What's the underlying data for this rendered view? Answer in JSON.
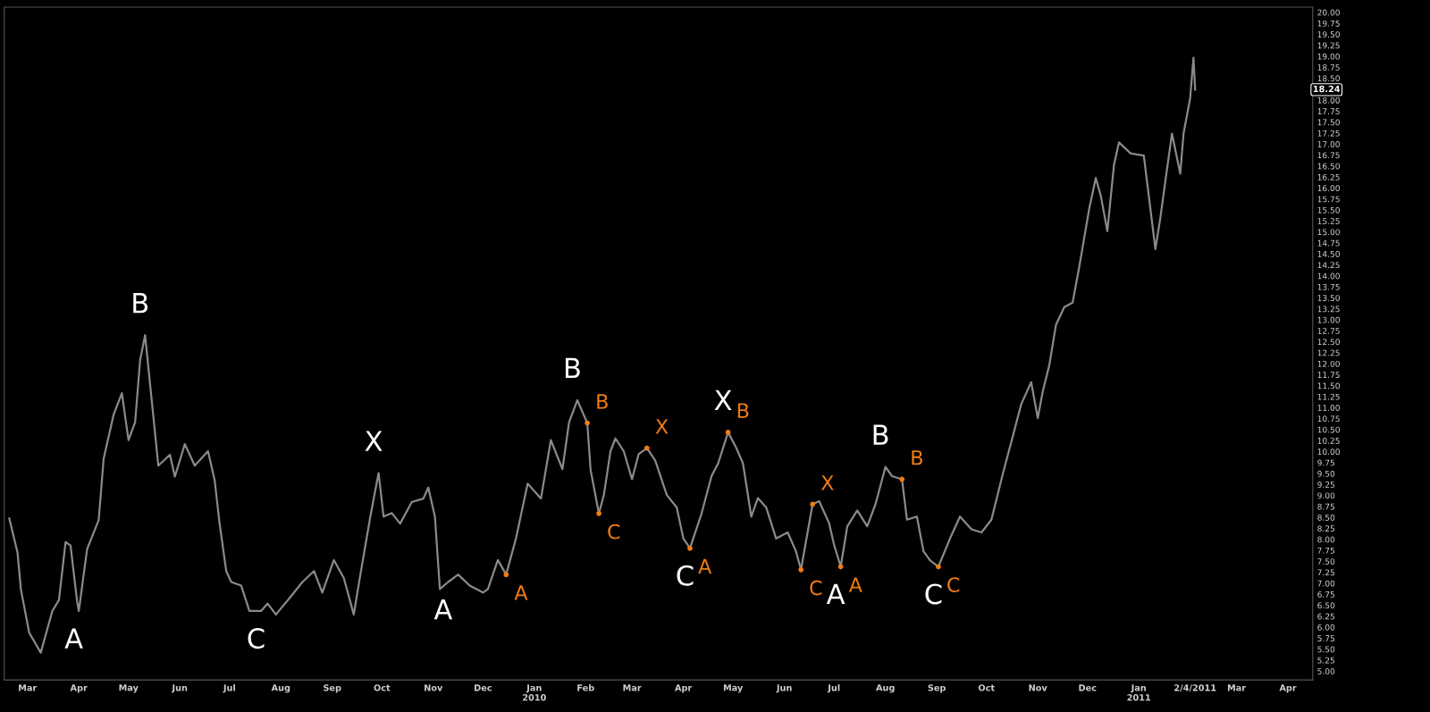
{
  "chart_data": {
    "type": "line",
    "x": [
      "2009-02-18",
      "2009-02-23",
      "2009-02-25",
      "2009-03-02",
      "2009-03-09",
      "2009-03-16",
      "2009-03-20",
      "2009-03-24",
      "2009-03-27",
      "2009-03-31",
      "2009-04-01",
      "2009-04-06",
      "2009-04-13",
      "2009-04-16",
      "2009-04-22",
      "2009-04-27",
      "2009-05-01",
      "2009-05-05",
      "2009-05-08",
      "2009-05-11",
      "2009-05-15",
      "2009-05-19",
      "2009-05-26",
      "2009-05-29",
      "2009-06-04",
      "2009-06-10",
      "2009-06-18",
      "2009-06-22",
      "2009-06-25",
      "2009-06-29",
      "2009-07-02",
      "2009-07-08",
      "2009-07-13",
      "2009-07-20",
      "2009-07-24",
      "2009-07-29",
      "2009-08-07",
      "2009-08-14",
      "2009-08-21",
      "2009-08-26",
      "2009-09-02",
      "2009-09-08",
      "2009-09-14",
      "2009-09-18",
      "2009-09-24",
      "2009-09-29",
      "2009-10-02",
      "2009-10-07",
      "2009-10-12",
      "2009-10-19",
      "2009-10-26",
      "2009-10-29",
      "2009-11-02",
      "2009-11-05",
      "2009-11-10",
      "2009-11-16",
      "2009-11-23",
      "2009-12-01",
      "2009-12-04",
      "2009-12-10",
      "2009-12-15",
      "2009-12-21",
      "2009-12-28",
      "2010-01-05",
      "2010-01-11",
      "2010-01-18",
      "2010-01-22",
      "2010-01-27",
      "2010-01-28",
      "2010-02-02",
      "2010-02-04",
      "2010-02-09",
      "2010-02-12",
      "2010-02-16",
      "2010-02-19",
      "2010-02-24",
      "2010-03-01",
      "2010-03-05",
      "2010-03-10",
      "2010-03-15",
      "2010-03-22",
      "2010-03-28",
      "2010-04-01",
      "2010-04-05",
      "2010-04-12",
      "2010-04-18",
      "2010-04-22",
      "2010-04-28",
      "2010-05-03",
      "2010-05-07",
      "2010-05-12",
      "2010-05-16",
      "2010-05-21",
      "2010-05-27",
      "2010-06-03",
      "2010-06-08",
      "2010-06-11",
      "2010-06-15",
      "2010-06-18",
      "2010-06-22",
      "2010-06-28",
      "2010-07-01",
      "2010-07-05",
      "2010-07-09",
      "2010-07-15",
      "2010-07-21",
      "2010-07-26",
      "2010-08-01",
      "2010-08-05",
      "2010-08-11",
      "2010-08-14",
      "2010-08-20",
      "2010-08-24",
      "2010-08-28",
      "2010-09-02",
      "2010-09-09",
      "2010-09-15",
      "2010-09-22",
      "2010-09-28",
      "2010-10-04",
      "2010-10-11",
      "2010-10-16",
      "2010-10-22",
      "2010-10-28",
      "2010-11-01",
      "2010-11-04",
      "2010-11-08",
      "2010-11-12",
      "2010-11-17",
      "2010-11-22",
      "2010-11-26",
      "2010-12-02",
      "2010-12-06",
      "2010-12-09",
      "2010-12-13",
      "2010-12-17",
      "2010-12-20",
      "2010-12-27",
      "2011-01-04",
      "2011-01-07",
      "2011-01-11",
      "2011-01-14",
      "2011-01-18",
      "2011-01-21",
      "2011-01-26",
      "2011-01-28",
      "2011-02-01",
      "2011-02-03",
      "2011-02-04"
    ],
    "series": [
      {
        "color": "#8a8a8a",
        "values": [
          8.48,
          7.7,
          6.87,
          5.88,
          5.42,
          6.37,
          6.62,
          7.94,
          7.86,
          6.58,
          6.37,
          7.78,
          8.44,
          9.84,
          10.84,
          11.33,
          10.26,
          10.67,
          12.08,
          12.65,
          11.17,
          9.68,
          9.93,
          9.43,
          10.17,
          9.68,
          10.01,
          9.35,
          8.36,
          7.28,
          7.03,
          6.95,
          6.37,
          6.37,
          6.54,
          6.29,
          6.7,
          7.03,
          7.28,
          6.79,
          7.53,
          7.12,
          6.29,
          7.2,
          8.52,
          9.51,
          8.52,
          8.6,
          8.36,
          8.85,
          8.93,
          9.18,
          8.52,
          6.87,
          7.03,
          7.2,
          6.95,
          6.79,
          6.87,
          7.53,
          7.2,
          8.03,
          9.27,
          8.93,
          10.26,
          9.6,
          10.67,
          11.17,
          11.08,
          10.65,
          9.58,
          8.59,
          9.01,
          10.01,
          10.3,
          10.01,
          9.37,
          9.94,
          10.08,
          9.8,
          9.01,
          8.73,
          8.02,
          7.8,
          8.59,
          9.44,
          9.73,
          10.44,
          10.08,
          9.73,
          8.52,
          8.94,
          8.73,
          8.02,
          8.16,
          7.73,
          7.31,
          8.16,
          8.8,
          8.87,
          8.37,
          7.88,
          7.38,
          8.3,
          8.66,
          8.3,
          8.8,
          9.65,
          9.44,
          9.37,
          8.45,
          8.52,
          7.73,
          7.52,
          7.38,
          8.02,
          8.52,
          8.23,
          8.16,
          8.45,
          9.51,
          10.22,
          11.08,
          11.58,
          10.76,
          11.37,
          11.98,
          12.89,
          13.29,
          13.39,
          14.2,
          15.52,
          16.23,
          15.83,
          15.02,
          16.53,
          17.04,
          16.79,
          16.74,
          15.83,
          14.61,
          15.32,
          16.43,
          17.24,
          16.33,
          17.24,
          18.05,
          18.97,
          18.24
        ]
      },
      {
        "type": "scatter",
        "color": "#f07c14",
        "marker": "circle",
        "x": [
          "2009-12-15",
          "2010-02-02",
          "2010-02-09",
          "2010-03-10",
          "2010-04-05",
          "2010-04-28",
          "2010-06-11",
          "2010-06-18",
          "2010-07-05",
          "2010-08-11",
          "2010-09-02"
        ],
        "values": [
          7.2,
          10.65,
          8.59,
          10.08,
          7.8,
          10.44,
          7.31,
          8.8,
          7.38,
          9.37,
          7.38
        ],
        "value_labels": [
          "A",
          "B",
          "C",
          "X",
          "A",
          "B",
          "C",
          "X",
          "A",
          "B",
          "C"
        ]
      }
    ],
    "xlim": [
      "2009-02-15",
      "2011-04-16"
    ],
    "xticks": [
      {
        "value": "2009-03-01",
        "label": "Mar"
      },
      {
        "value": "2009-04-01",
        "label": "Apr"
      },
      {
        "value": "2009-05-01",
        "label": "May"
      },
      {
        "value": "2009-06-01",
        "label": "Jun"
      },
      {
        "value": "2009-07-01",
        "label": "Jul"
      },
      {
        "value": "2009-08-01",
        "label": "Aug"
      },
      {
        "value": "2009-09-01",
        "label": "Sep"
      },
      {
        "value": "2009-10-01",
        "label": "Oct"
      },
      {
        "value": "2009-11-01",
        "label": "Nov"
      },
      {
        "value": "2009-12-01",
        "label": "Dec"
      },
      {
        "value": "2010-01-01",
        "label": "Jan\n2010"
      },
      {
        "value": "2010-02-01",
        "label": "Feb"
      },
      {
        "value": "2010-03-01",
        "label": "Mar"
      },
      {
        "value": "2010-04-01",
        "label": "Apr"
      },
      {
        "value": "2010-05-01",
        "label": "May"
      },
      {
        "value": "2010-06-01",
        "label": "Jun"
      },
      {
        "value": "2010-07-01",
        "label": "Jul"
      },
      {
        "value": "2010-08-01",
        "label": "Aug"
      },
      {
        "value": "2010-09-01",
        "label": "Sep"
      },
      {
        "value": "2010-10-01",
        "label": "Oct"
      },
      {
        "value": "2010-11-01",
        "label": "Nov"
      },
      {
        "value": "2010-12-01",
        "label": "Dec"
      },
      {
        "value": "2011-01-01",
        "label": "Jan\n2011"
      },
      {
        "value": "2011-02-04",
        "label": "2/4/2011"
      },
      {
        "value": "2011-03-01",
        "label": "Mar"
      },
      {
        "value": "2011-04-01",
        "label": "Apr"
      }
    ],
    "ylim": [
      4.8,
      20.12
    ],
    "yticks": [
      {
        "value": 5,
        "label": "5.00"
      },
      {
        "value": 5.25,
        "label": "5.25"
      },
      {
        "value": 5.5,
        "label": "5.50"
      },
      {
        "value": 5.75,
        "label": "5.75"
      },
      {
        "value": 6,
        "label": "6.00"
      },
      {
        "value": 6.25,
        "label": "6.25"
      },
      {
        "value": 6.5,
        "label": "6.50"
      },
      {
        "value": 6.75,
        "label": "6.75"
      },
      {
        "value": 7,
        "label": "7.00"
      },
      {
        "value": 7.25,
        "label": "7.25"
      },
      {
        "value": 7.5,
        "label": "7.50"
      },
      {
        "value": 7.75,
        "label": "7.75"
      },
      {
        "value": 8,
        "label": "8.00"
      },
      {
        "value": 8.25,
        "label": "8.25"
      },
      {
        "value": 8.5,
        "label": "8.50"
      },
      {
        "value": 8.75,
        "label": "8.75"
      },
      {
        "value": 9,
        "label": "9.00"
      },
      {
        "value": 9.25,
        "label": "9.25"
      },
      {
        "value": 9.5,
        "label": "9.50"
      },
      {
        "value": 9.75,
        "label": "9.75"
      },
      {
        "value": 10,
        "label": "10.00"
      },
      {
        "value": 10.25,
        "label": "10.25"
      },
      {
        "value": 10.5,
        "label": "10.50"
      },
      {
        "value": 10.75,
        "label": "10.75"
      },
      {
        "value": 11,
        "label": "11.00"
      },
      {
        "value": 11.25,
        "label": "11.25"
      },
      {
        "value": 11.5,
        "label": "11.50"
      },
      {
        "value": 11.75,
        "label": "11.75"
      },
      {
        "value": 12,
        "label": "12.00"
      },
      {
        "value": 12.25,
        "label": "12.25"
      },
      {
        "value": 12.5,
        "label": "12.50"
      },
      {
        "value": 12.75,
        "label": "12.75"
      },
      {
        "value": 13,
        "label": "13.00"
      },
      {
        "value": 13.25,
        "label": "13.25"
      },
      {
        "value": 13.5,
        "label": "13.50"
      },
      {
        "value": 13.75,
        "label": "13.75"
      },
      {
        "value": 14,
        "label": "14.00"
      },
      {
        "value": 14.25,
        "label": "14.25"
      },
      {
        "value": 14.5,
        "label": "14.50"
      },
      {
        "value": 14.75,
        "label": "14.75"
      },
      {
        "value": 15,
        "label": "15.00"
      },
      {
        "value": 15.25,
        "label": "15.25"
      },
      {
        "value": 15.5,
        "label": "15.50"
      },
      {
        "value": 15.75,
        "label": "15.75"
      },
      {
        "value": 16,
        "label": "16.00"
      },
      {
        "value": 16.25,
        "label": "16.25"
      },
      {
        "value": 16.5,
        "label": "16.50"
      },
      {
        "value": 16.75,
        "label": "16.75"
      },
      {
        "value": 17,
        "label": "17.00"
      },
      {
        "value": 17.25,
        "label": "17.25"
      },
      {
        "value": 17.5,
        "label": "17.50"
      },
      {
        "value": 17.75,
        "label": "17.75"
      },
      {
        "value": 18,
        "label": "18.00"
      },
      {
        "value": 18.5,
        "label": "18.50"
      },
      {
        "value": 18.75,
        "label": "18.75"
      },
      {
        "value": 19,
        "label": "19.00"
      },
      {
        "value": 19.25,
        "label": "19.25"
      },
      {
        "value": 19.5,
        "label": "19.50"
      },
      {
        "value": 19.75,
        "label": "19.75"
      },
      {
        "value": 20,
        "label": "20.00"
      }
    ],
    "grid": false,
    "legend": false,
    "marker": "none",
    "line_style": "solid",
    "annotations": [
      "18.24",
      {
        "text": "A",
        "x": "2009-04-01",
        "y": 6.37
      },
      {
        "text": "B",
        "x": "2009-05-11",
        "y": 12.65
      },
      {
        "text": "C",
        "x": "2009-07-20",
        "y": 6.37
      },
      {
        "text": "X",
        "x": "2009-09-29",
        "y": 9.51
      },
      {
        "text": "A",
        "x": "2009-11-10",
        "y": 7.03
      },
      {
        "text": "B",
        "x": "2010-01-27",
        "y": 11.17
      },
      {
        "text": "C",
        "x": "2010-04-05",
        "y": 7.8
      },
      {
        "text": "X",
        "x": "2010-04-28",
        "y": 10.44
      },
      {
        "text": "A",
        "x": "2010-07-05",
        "y": 7.38
      },
      {
        "text": "B",
        "x": "2010-08-01",
        "y": 9.65
      },
      {
        "text": "C",
        "x": "2010-09-02",
        "y": 7.38
      }
    ]
  }
}
